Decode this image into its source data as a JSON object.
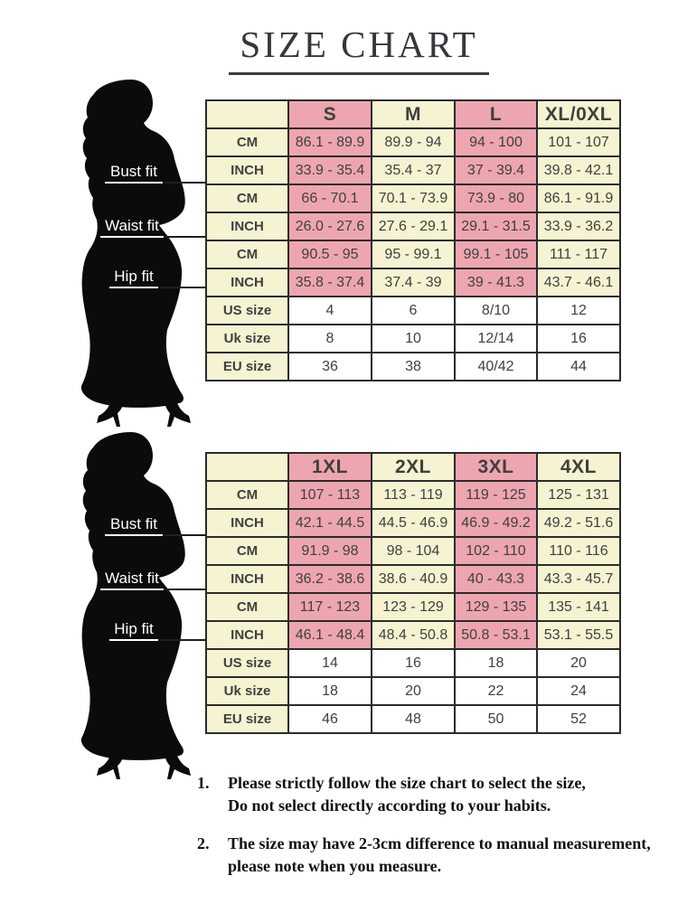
{
  "page": {
    "title": "SIZE CHART",
    "notes": [
      {
        "num": "1.",
        "line1": "Please strictly follow the size chart to select the size,",
        "line2": "Do not select directly according to your habits."
      },
      {
        "num": "2.",
        "line1": "The size may have 2-3cm difference  to manual measurement,",
        "line2": "please note when you measure."
      }
    ]
  },
  "figure": {
    "bust_label": "Bust fit",
    "waist_label": "Waist fit",
    "hip_label": "Hip fit"
  },
  "colors": {
    "pink": "#eda6af",
    "cream": "#f6f3d2",
    "cell_white": "#ffffff",
    "table_border": "#2b2b2b",
    "silhouette": "#0b0b0b"
  },
  "tables": [
    {
      "header": [
        "",
        "S",
        "M",
        "L",
        "XL/0XL"
      ],
      "rows": [
        {
          "label": "CM",
          "section": "bust",
          "shaded": true,
          "values": [
            "86.1 - 89.9",
            "89.9 - 94",
            "94 - 100",
            "101 - 107"
          ]
        },
        {
          "label": "INCH",
          "section": "bust",
          "shaded": true,
          "values": [
            "33.9 - 35.4",
            "35.4 - 37",
            "37 - 39.4",
            "39.8 - 42.1"
          ]
        },
        {
          "label": "CM",
          "section": "waist",
          "shaded": true,
          "values": [
            "66 - 70.1",
            "70.1 - 73.9",
            "73.9 - 80",
            "86.1 - 91.9"
          ]
        },
        {
          "label": "INCH",
          "section": "waist",
          "shaded": true,
          "values": [
            "26.0 - 27.6",
            "27.6 - 29.1",
            "29.1 - 31.5",
            "33.9 - 36.2"
          ]
        },
        {
          "label": "CM",
          "section": "hip",
          "shaded": true,
          "values": [
            "90.5 - 95",
            "95 - 99.1",
            "99.1 - 105",
            "111 - 117"
          ]
        },
        {
          "label": "INCH",
          "section": "hip",
          "shaded": true,
          "values": [
            "35.8 - 37.4",
            "37.4 - 39",
            "39 - 41.3",
            "43.7 - 46.1"
          ]
        },
        {
          "label": "US size",
          "section": "conv",
          "shaded": false,
          "values": [
            "4",
            "6",
            "8/10",
            "12"
          ]
        },
        {
          "label": "Uk size",
          "section": "conv",
          "shaded": false,
          "values": [
            "8",
            "10",
            "12/14",
            "16"
          ]
        },
        {
          "label": "EU size",
          "section": "conv",
          "shaded": false,
          "values": [
            "36",
            "38",
            "40/42",
            "44"
          ]
        }
      ]
    },
    {
      "header": [
        "",
        "1XL",
        "2XL",
        "3XL",
        "4XL"
      ],
      "rows": [
        {
          "label": "CM",
          "section": "bust",
          "shaded": true,
          "values": [
            "107 - 113",
            "113 - 119",
            "119 - 125",
            "125 - 131"
          ]
        },
        {
          "label": "INCH",
          "section": "bust",
          "shaded": true,
          "values": [
            "42.1 - 44.5",
            "44.5 - 46.9",
            "46.9 - 49.2",
            "49.2 - 51.6"
          ]
        },
        {
          "label": "CM",
          "section": "waist",
          "shaded": true,
          "values": [
            "91.9 - 98",
            "98 - 104",
            "102 - 110",
            "110 - 116"
          ]
        },
        {
          "label": "INCH",
          "section": "waist",
          "shaded": true,
          "values": [
            "36.2 - 38.6",
            "38.6 - 40.9",
            "40 - 43.3",
            "43.3 - 45.7"
          ]
        },
        {
          "label": "CM",
          "section": "hip",
          "shaded": true,
          "values": [
            "117 - 123",
            "123 - 129",
            "129 - 135",
            "135 - 141"
          ]
        },
        {
          "label": "INCH",
          "section": "hip",
          "shaded": true,
          "values": [
            "46.1 - 48.4",
            "48.4 - 50.8",
            "50.8 - 53.1",
            "53.1 - 55.5"
          ]
        },
        {
          "label": "US size",
          "section": "conv",
          "shaded": false,
          "values": [
            "14",
            "16",
            "18",
            "20"
          ]
        },
        {
          "label": "Uk size",
          "section": "conv",
          "shaded": false,
          "values": [
            "18",
            "20",
            "22",
            "24"
          ]
        },
        {
          "label": "EU size",
          "section": "conv",
          "shaded": false,
          "values": [
            "46",
            "48",
            "50",
            "52"
          ]
        }
      ]
    }
  ]
}
